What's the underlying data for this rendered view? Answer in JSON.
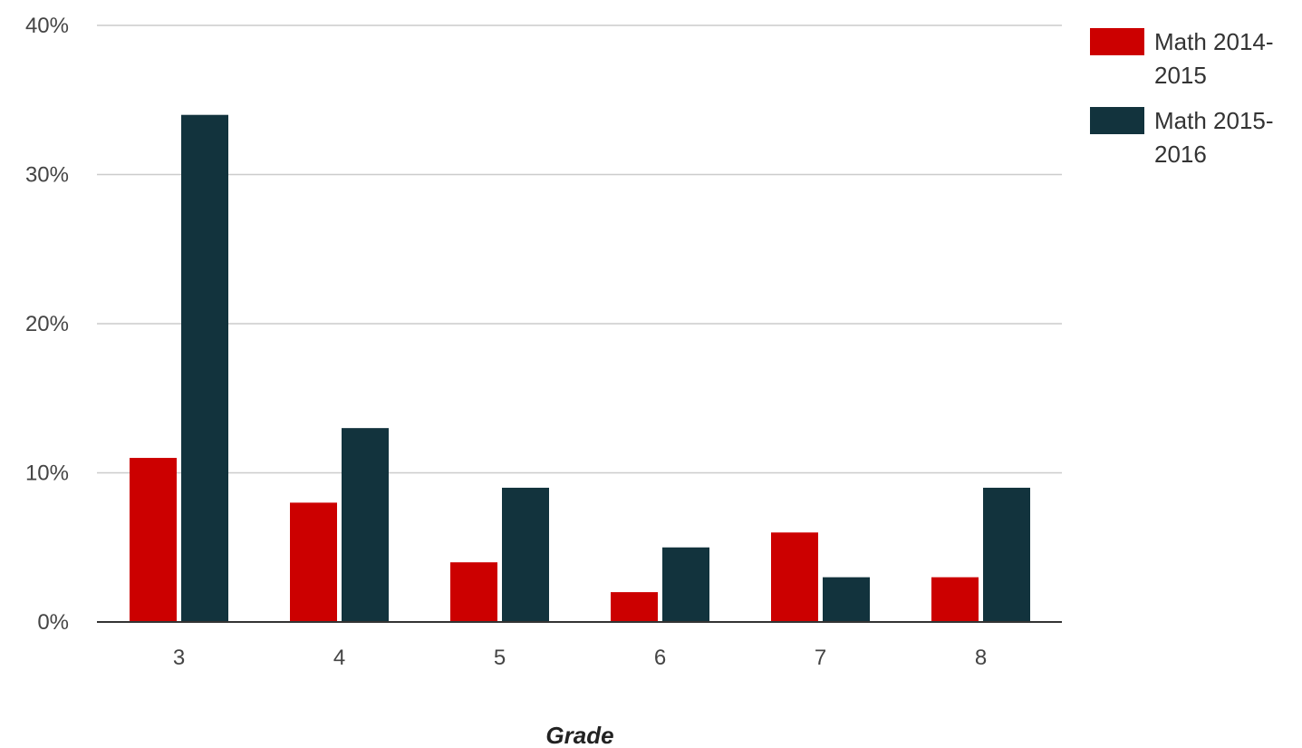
{
  "chart_data": {
    "type": "bar",
    "title": "",
    "xlabel": "Grade",
    "ylabel": "",
    "categories": [
      "3",
      "4",
      "5",
      "6",
      "7",
      "8"
    ],
    "series": [
      {
        "name": "Math 2014-2015",
        "color": "#cc0000",
        "values": [
          11,
          8,
          4,
          2,
          6,
          3
        ]
      },
      {
        "name": "Math 2015-2016",
        "color": "#12333d",
        "values": [
          34,
          13,
          9,
          5,
          3,
          9
        ]
      }
    ],
    "y_ticks": [
      {
        "value": 0,
        "label": "0%"
      },
      {
        "value": 10,
        "label": "10%"
      },
      {
        "value": 20,
        "label": "20%"
      },
      {
        "value": 30,
        "label": "30%"
      },
      {
        "value": 40,
        "label": "40%"
      }
    ],
    "ylim": [
      0,
      40
    ],
    "unit": "%",
    "grid": true,
    "legend_position": "top-right",
    "legend": [
      {
        "lines": [
          "Math 2014-",
          "2015"
        ]
      },
      {
        "lines": [
          "Math 2015-",
          "2016"
        ]
      }
    ]
  }
}
